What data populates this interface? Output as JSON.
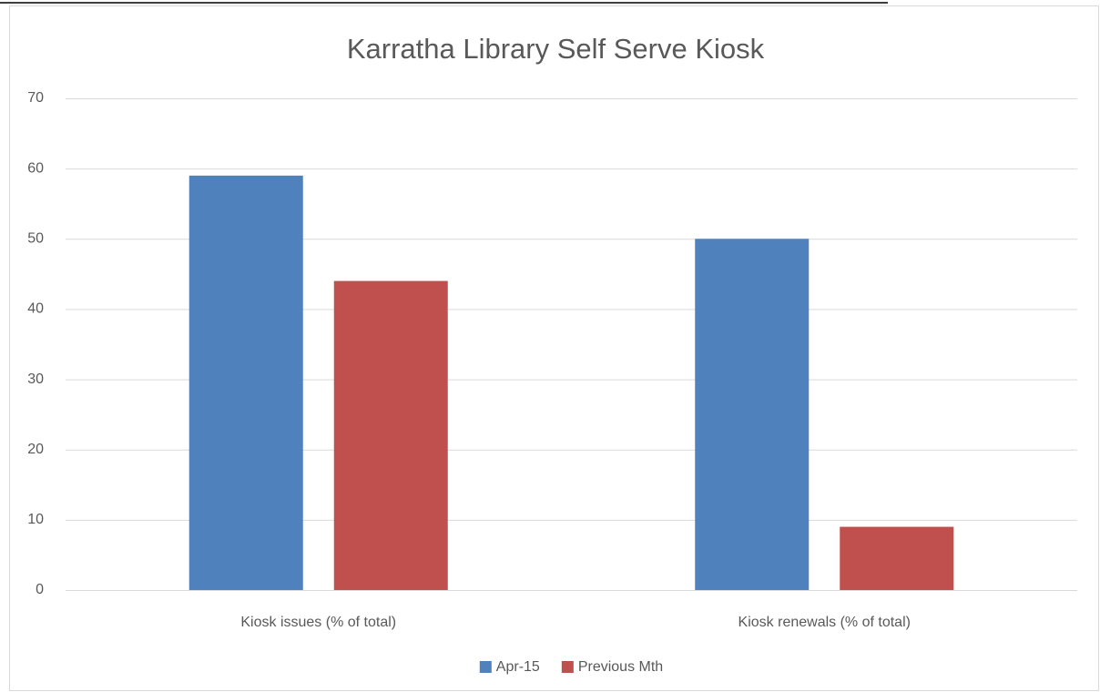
{
  "chart_data": {
    "type": "bar",
    "title": "Karratha Library Self Serve Kiosk",
    "categories": [
      "Kiosk issues (% of total)",
      "Kiosk renewals (% of total)"
    ],
    "series": [
      {
        "name": "Apr-15",
        "color": "#4f81bd",
        "values": [
          59,
          50
        ]
      },
      {
        "name": "Previous Mth",
        "color": "#c0504d",
        "values": [
          44,
          9
        ]
      }
    ],
    "ylim": [
      0,
      70
    ],
    "yticks": [
      0,
      10,
      20,
      30,
      40,
      50,
      60,
      70
    ],
    "grid": true,
    "legend": "bottom"
  }
}
